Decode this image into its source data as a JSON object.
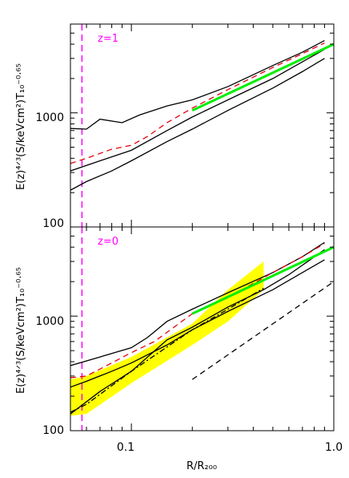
{
  "chart_data": {
    "type": "line",
    "xscale": "log",
    "yscale": "log",
    "xlim": [
      0.05,
      1.0
    ],
    "ylim": [
      100,
      6000
    ],
    "x_tick_labels": [
      "0.1",
      "1.0"
    ],
    "y_tick_labels": [
      "100",
      "1000"
    ],
    "xlabel": "R/R₂₀₀",
    "ylabel": "E(z)⁴ᐟ³(S/keVcm²)T₁₀⁻⁰·⁶⁵",
    "colors": {
      "profiles": "#000000",
      "median_dashed": "#e8000b",
      "r_marker": "#ff00ff",
      "baseline_fit": "#00ee00",
      "observed_band": "#ffff00"
    },
    "panels": [
      {
        "label": "z=1",
        "vline_x": 0.057,
        "series": [
          {
            "role": "upper",
            "style": "solid",
            "color": "#000000",
            "x": [
              0.05,
              0.06,
              0.07,
              0.09,
              0.11,
              0.15,
              0.2,
              0.3,
              0.5,
              0.7,
              0.9
            ],
            "y": [
              730,
              720,
              880,
              820,
              960,
              1150,
              1300,
              1700,
              2600,
              3400,
              4300
            ]
          },
          {
            "role": "middle",
            "style": "solid",
            "color": "#000000",
            "x": [
              0.05,
              0.07,
              0.1,
              0.15,
              0.2,
              0.3,
              0.5,
              0.7,
              0.9
            ],
            "y": [
              310,
              380,
              470,
              700,
              920,
              1300,
              2000,
              2800,
              3600
            ]
          },
          {
            "role": "lower",
            "style": "solid",
            "color": "#000000",
            "x": [
              0.05,
              0.06,
              0.08,
              0.1,
              0.15,
              0.2,
              0.3,
              0.5,
              0.7,
              0.9
            ],
            "y": [
              210,
              250,
              310,
              380,
              560,
              720,
              1050,
              1650,
              2300,
              3000
            ]
          },
          {
            "role": "median",
            "style": "dashed",
            "color": "#e8000b",
            "x": [
              0.05,
              0.06,
              0.08,
              0.1,
              0.12,
              0.15,
              0.2,
              0.3,
              0.5,
              0.7,
              0.9
            ],
            "y": [
              360,
              400,
              480,
              520,
              620,
              820,
              1100,
              1600,
              2500,
              3300,
              4100
            ]
          },
          {
            "role": "baseline",
            "style": "solid",
            "color": "#00ee00",
            "x": [
              0.2,
              1.0
            ],
            "y": [
              1050,
              4000
            ]
          }
        ]
      },
      {
        "label": "z=0",
        "vline_x": 0.057,
        "band": {
          "x": [
            0.05,
            0.06,
            0.1,
            0.2,
            0.3,
            0.45
          ],
          "lower": [
            135,
            140,
            260,
            560,
            900,
            1700
          ],
          "upper": [
            280,
            300,
            440,
            860,
            1700,
            3000
          ]
        },
        "series": [
          {
            "role": "upper",
            "style": "solid",
            "color": "#000000",
            "x": [
              0.05,
              0.07,
              0.1,
              0.12,
              0.15,
              0.2,
              0.3,
              0.5,
              0.7,
              0.9
            ],
            "y": [
              370,
              440,
              530,
              650,
              900,
              1150,
              1600,
              2400,
              3300,
              4400
            ]
          },
          {
            "role": "middle",
            "style": "solid",
            "color": "#000000",
            "x": [
              0.05,
              0.07,
              0.1,
              0.15,
              0.2,
              0.3,
              0.45,
              0.6,
              0.9
            ],
            "y": [
              140,
              220,
              330,
              620,
              800,
              1200,
              1700,
              2300,
              3800
            ]
          },
          {
            "role": "lower",
            "style": "solid",
            "color": "#000000",
            "x": [
              0.05,
              0.06,
              0.08,
              0.1,
              0.15,
              0.2,
              0.3,
              0.5,
              0.7,
              0.9
            ],
            "y": [
              240,
              270,
              330,
              390,
              560,
              760,
              1100,
              1700,
              2400,
              3100
            ]
          },
          {
            "role": "median",
            "style": "dashed",
            "color": "#e8000b",
            "x": [
              0.05,
              0.06,
              0.08,
              0.1,
              0.13,
              0.2,
              0.3,
              0.5,
              0.7,
              0.9
            ],
            "y": [
              290,
              300,
              390,
              480,
              600,
              1050,
              1450,
              2400,
              3300,
              4300
            ]
          },
          {
            "role": "dash-dot",
            "style": "dashdot",
            "color": "#000000",
            "x": [
              0.05,
              0.06,
              0.1,
              0.2,
              0.3,
              0.45
            ],
            "y": [
              145,
              170,
              330,
              760,
              1150,
              1750
            ]
          },
          {
            "role": "baseline",
            "style": "solid",
            "color": "#00ee00",
            "x": [
              0.2,
              1.0
            ],
            "y": [
              1050,
              4000
            ]
          },
          {
            "role": "offset-reference",
            "style": "dashed",
            "color": "#000000",
            "x": [
              0.2,
              1.0
            ],
            "y": [
              280,
              2000
            ]
          }
        ]
      }
    ]
  }
}
